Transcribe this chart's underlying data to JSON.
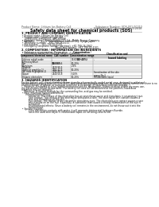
{
  "background_color": "#ffffff",
  "header_left": "Product Name: Lithium Ion Battery Cell",
  "header_right_line1": "Substance Number: SDS-001-00010",
  "header_right_line2": "Establishment / Revision: Dec.1.2010",
  "main_title": "Safety data sheet for chemical products (SDS)",
  "section1_title": "1. PRODUCT AND COMPANY IDENTIFICATION",
  "section1_lines": [
    " • Product name: Lithium Ion Battery Cell",
    " • Product code: Cylindrical-type (all)",
    "     (IHR8500U, IHR18500L, IHR18500A)",
    " • Company name:   Sanyo Electric Co., Ltd.  Mobile Energy Company",
    " • Address:          2221  Kamionkusen, Sumoto City, Hyogo, Japan",
    " • Telephone number:    +81-799-26-4111",
    " • Fax number:    +81-799-26-4120",
    " • Emergency telephone number (daytime): +81-799-26-3962",
    "                                                (Night and holiday): +81-799-26-4101"
  ],
  "section2_title": "2. COMPOSITION / INFORMATION ON INGREDIENTS",
  "section2_intro": " • Substance or preparation: Preparation",
  "section2_sub": " • Information about the chemical nature of product:",
  "table_header_row1": [
    "Component/chemical name",
    "CAS number",
    "Concentration /",
    "Classification and"
  ],
  "table_header_row2": [
    "",
    "",
    "Concentration range",
    "hazard labeling"
  ],
  "table_header_row3": [
    "",
    "",
    "(30-40%)",
    ""
  ],
  "table_rows": [
    [
      "Lithium cobalt oxide",
      "-",
      "30-60%",
      "-"
    ],
    [
      "(LiMnxCoyNiOz)",
      "",
      "",
      ""
    ],
    [
      "Iron",
      "CAS:08-5\n7439-89-6",
      "10-20%",
      ""
    ],
    [
      "Aluminum",
      "7429-90-5",
      "2-5%",
      ""
    ],
    [
      "Graphite",
      "",
      "",
      ""
    ],
    [
      "(Ratio in graphite-1)",
      "7782-42-5",
      "10-20%",
      ""
    ],
    [
      "(All ratio in graphite-1)",
      "7782-44-2",
      "",
      ""
    ],
    [
      "Copper",
      "7440-50-8",
      "5-10%",
      "Sensitization of the skin"
    ],
    [
      "",
      "",
      "",
      "group No.2"
    ],
    [
      "Organic electrolyte",
      "-",
      "10-20%",
      "Inflammable liquid"
    ]
  ],
  "section3_title": "3. HAZARDS IDENTIFICATION",
  "section3_lines": [
    "For the battery cell, chemical materials are stored in a hermetically sealed metal case, designed to withstand",
    "temperatures ranging from -40°C to 100°C and vibrations during normal use. As a result, during normal use, there is no",
    "physical danger of ignition or explosion and there is no danger of hazardous materials leakage.",
    "    However, if exposed to a fire, added mechanical shocks, decompose, violent external and/or dry mass use,",
    "the gas models cannot be operated. The battery cell case will be breached at fire patterns, hazardous",
    "materials may be released.",
    "    Moreover, if heated strongly by the surrounding fire, acid gas may be emitted."
  ],
  "section3_bullet1": " • Most important hazard and effects:",
  "section3_human": "      Human health effects:",
  "section3_detail_lines": [
    "          Inhalation: The release of the electrolyte has an anesthesia action and stimulates in respiratory tract.",
    "          Skin contact: The release of the electrolyte stimulates a skin. The electrolyte skin contact causes a",
    "          sore and stimulation on the skin.",
    "          Eye contact: The release of the electrolyte stimulates eyes. The electrolyte eye contact causes a sore",
    "          and stimulation on the eye. Especially, a substance that causes a strong inflammation of the eye is",
    "          contained.",
    "          Environmental effects: Since a battery cell remains in the environment, do not throw out it into the",
    "          environment."
  ],
  "section3_bullet2": " • Specific hazards:",
  "section3_specific_lines": [
    "          If the electrolyte contacts with water, it will generate detrimental hydrogen fluoride.",
    "          Since the used electrolyte is inflammable liquid, do not bring close to fire."
  ]
}
